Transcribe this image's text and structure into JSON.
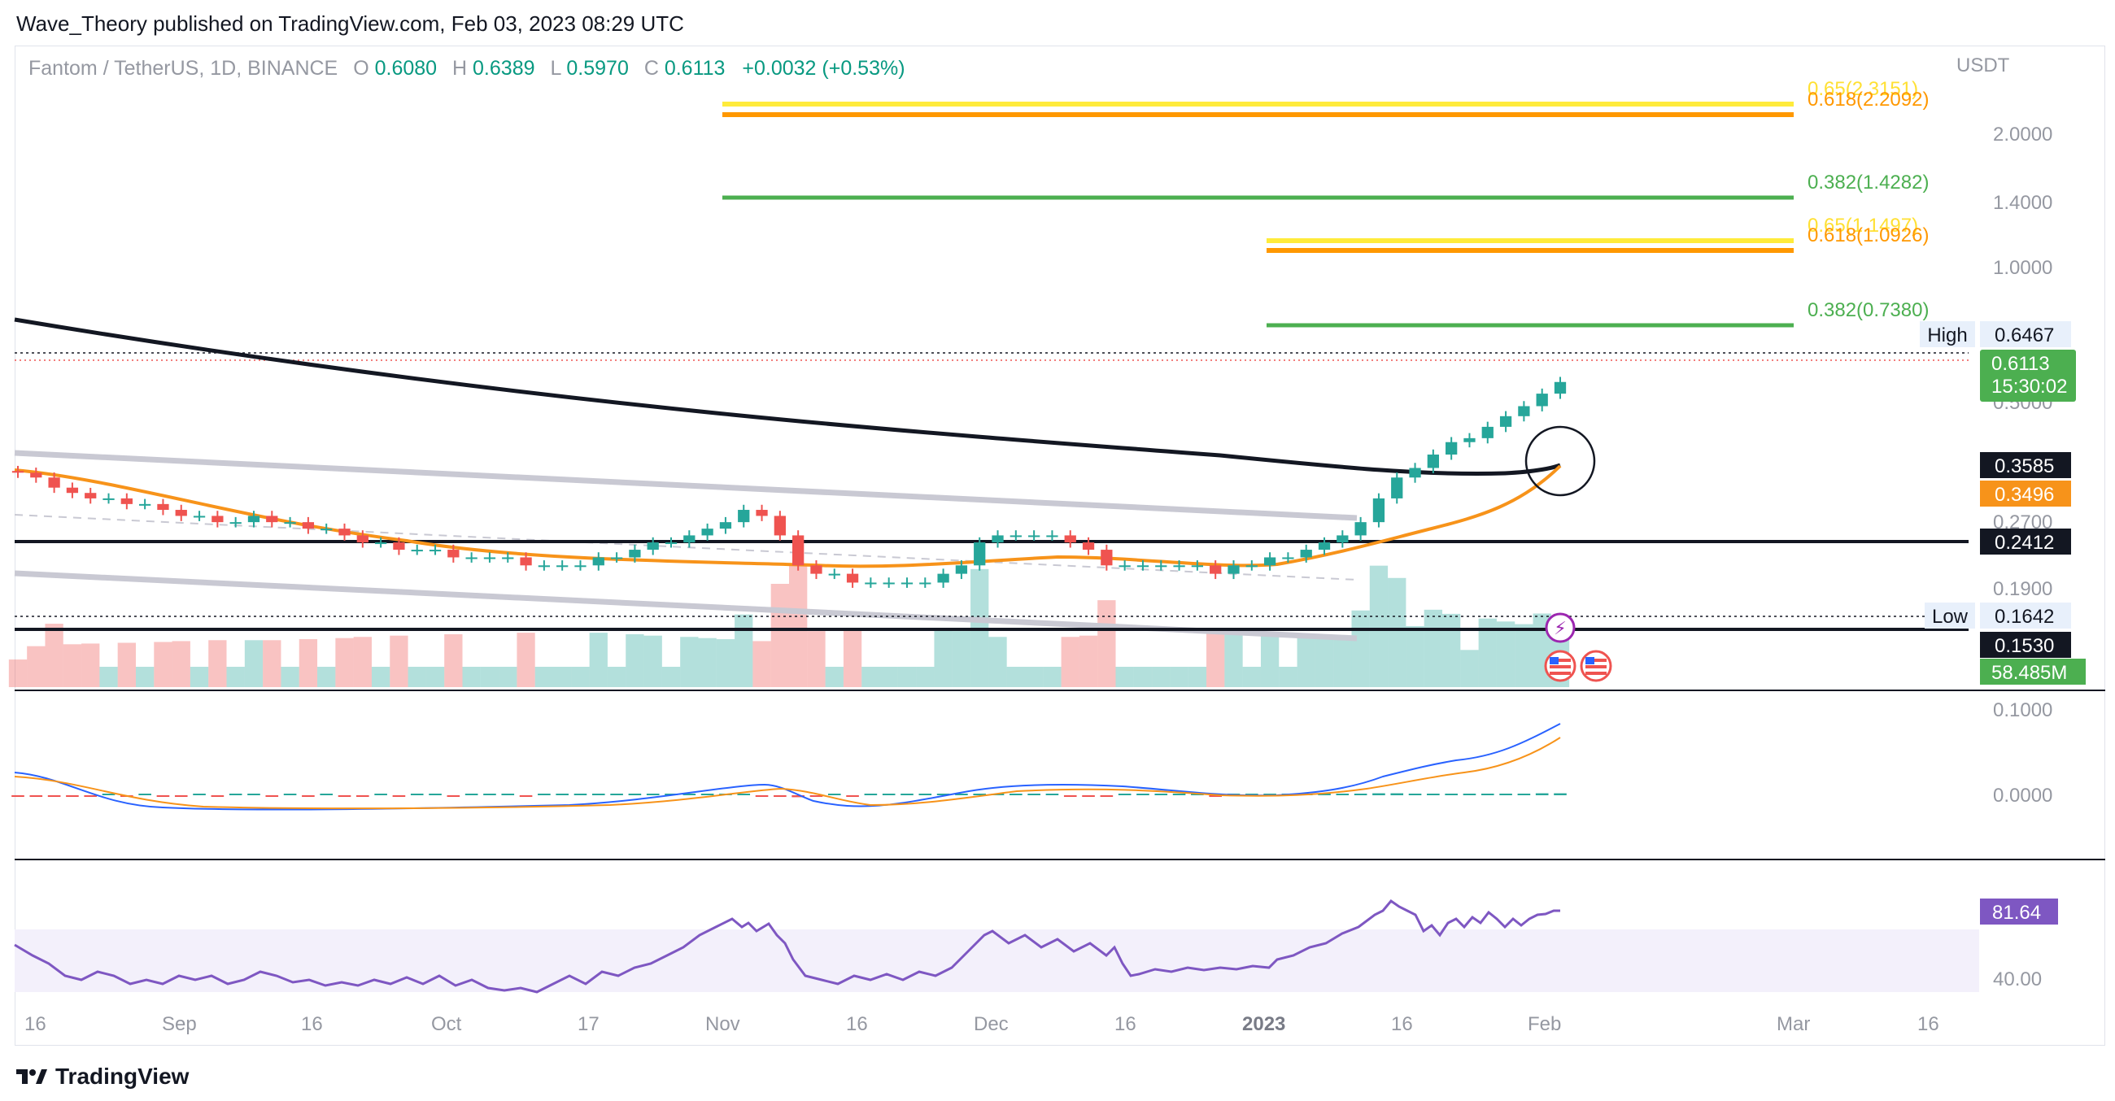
{
  "header": {
    "publisher_line": "Wave_Theory published on TradingView.com, Feb 03, 2023 08:29 UTC"
  },
  "legend": {
    "symbol": "Fantom / TetherUS, 1D, BINANCE",
    "o_label": "O",
    "o_value": "0.6080",
    "h_label": "H",
    "h_value": "0.6389",
    "l_label": "L",
    "l_value": "0.5970",
    "c_label": "C",
    "c_value": "0.6113",
    "change": "+0.0032 (+0.53%)"
  },
  "colors": {
    "up": "#26a69a",
    "down": "#ef5350",
    "ema_orange": "#f7931a",
    "ma_black": "#131722",
    "fib_green": "#4caf50",
    "fib_orange": "#ff9800",
    "fib_yellow": "#ffeb3b",
    "macd_blue": "#2962ff",
    "rsi_purple": "#7e57c2",
    "channel_gray": "#c9c9d3",
    "rsi_band": "#f3f0fb"
  },
  "brand": {
    "name": "TradingView"
  },
  "chart_data": [
    {
      "type": "candlestick",
      "title": "Fantom / TetherUS, 1D, BINANCE",
      "price_axis": {
        "currency_label": "USDT",
        "scale": "log",
        "ticks": [
          "2.0000",
          "1.4000",
          "1.0000",
          "0.5000",
          "0.2700",
          "0.1900",
          "0.1000"
        ]
      },
      "time_axis": {
        "ticks": [
          "16",
          "Sep",
          "16",
          "Oct",
          "17",
          "Nov",
          "16",
          "Dec",
          "16",
          "2023",
          "16",
          "Feb",
          "Mar",
          "16"
        ]
      },
      "fib_levels": [
        {
          "label": "0.65(2.3151)",
          "value": 2.3151,
          "color": "#ffeb3b"
        },
        {
          "label": "0.618(2.2092)",
          "value": 2.2092,
          "color": "#ff9800"
        },
        {
          "label": "0.382(1.4282)",
          "value": 1.4282,
          "color": "#4caf50"
        },
        {
          "label": "0.65(1.1497)",
          "value": 1.1497,
          "color": "#ffeb3b"
        },
        {
          "label": "0.618(1.0926)",
          "value": 1.0926,
          "color": "#ff9800"
        },
        {
          "label": "0.382(0.7380)",
          "value": 0.738,
          "color": "#4caf50"
        }
      ],
      "horizontal_lines": [
        {
          "value": 0.2412,
          "label": "0.2412"
        },
        {
          "value": 0.153,
          "label": "0.1530"
        }
      ],
      "price_labels": [
        {
          "name": "High",
          "value": "0.6467"
        },
        {
          "name": "close",
          "value": "0.6113",
          "countdown": "15:30:02"
        },
        {
          "name": "ma200",
          "value": "0.3585"
        },
        {
          "name": "ema50",
          "value": "0.3496"
        },
        {
          "name": "support",
          "value": "0.2412"
        },
        {
          "name": "Low",
          "value": "0.1642"
        },
        {
          "name": "support-low",
          "value": "0.1530"
        },
        {
          "name": "volume",
          "value": "58.485M"
        }
      ],
      "close_series": [
        0.36,
        0.35,
        0.33,
        0.32,
        0.31,
        0.31,
        0.3,
        0.3,
        0.29,
        0.28,
        0.28,
        0.27,
        0.27,
        0.28,
        0.27,
        0.27,
        0.26,
        0.26,
        0.25,
        0.24,
        0.24,
        0.23,
        0.23,
        0.23,
        0.22,
        0.22,
        0.22,
        0.22,
        0.21,
        0.21,
        0.21,
        0.21,
        0.22,
        0.22,
        0.23,
        0.24,
        0.24,
        0.25,
        0.26,
        0.27,
        0.29,
        0.28,
        0.25,
        0.21,
        0.2,
        0.2,
        0.19,
        0.19,
        0.19,
        0.19,
        0.19,
        0.2,
        0.21,
        0.24,
        0.25,
        0.25,
        0.25,
        0.25,
        0.24,
        0.23,
        0.21,
        0.21,
        0.21,
        0.21,
        0.21,
        0.21,
        0.2,
        0.21,
        0.21,
        0.22,
        0.22,
        0.23,
        0.24,
        0.25,
        0.27,
        0.31,
        0.35,
        0.37,
        0.4,
        0.43,
        0.44,
        0.47,
        0.5,
        0.53,
        0.57,
        0.61
      ]
    },
    {
      "type": "line",
      "title": "MACD",
      "axis_ticks": [
        "0.1000",
        "0.0000"
      ]
    },
    {
      "type": "line",
      "title": "RSI",
      "value_label": "81.64",
      "axis_ticks": [
        "40.00"
      ]
    }
  ]
}
